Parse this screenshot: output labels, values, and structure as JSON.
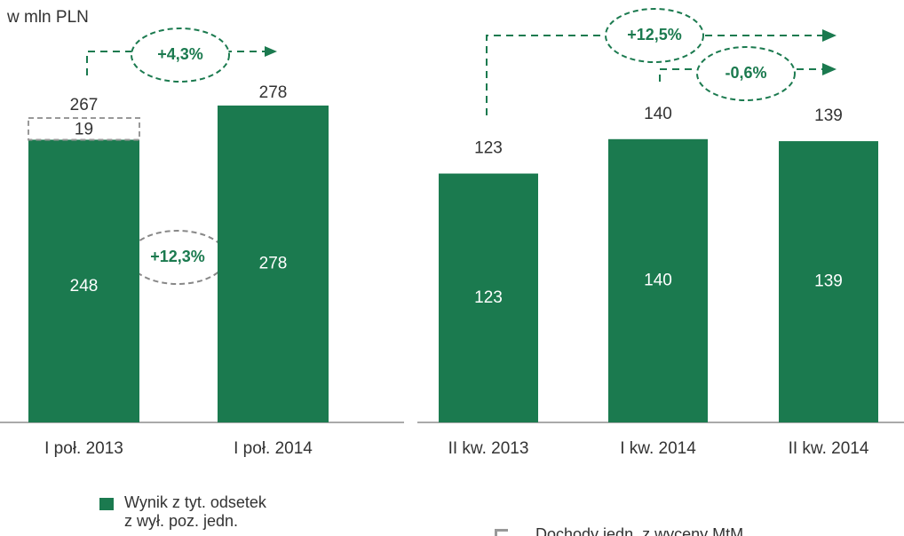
{
  "chart_data": [
    {
      "type": "stacked_bar",
      "subtitle": "w mln PLN",
      "categories": [
        "I poł. 2013",
        "I poł. 2014"
      ],
      "series": [
        {
          "name": "Wynik z  tyt. odsetek\nz  wył. poz. jedn.",
          "color": "#1b7a4f",
          "values": [
            248,
            278
          ]
        },
        {
          "name": "Dochody jedn. z wyceny  MtM",
          "color": "#999999",
          "values": [
            19,
            null
          ]
        }
      ],
      "totals": [
        267,
        278
      ],
      "annotations": [
        "+4,3%",
        "+12,3%"
      ],
      "ylim": [
        0,
        355
      ]
    },
    {
      "type": "bar",
      "categories": [
        "II kw. 2013",
        "I kw. 2014",
        "II kw. 2014"
      ],
      "values": [
        123,
        140,
        139
      ],
      "color": "#1b7a4f",
      "annotations": [
        "+12,5%",
        "-0,6%"
      ],
      "ylim": [
        0,
        200
      ]
    }
  ]
}
